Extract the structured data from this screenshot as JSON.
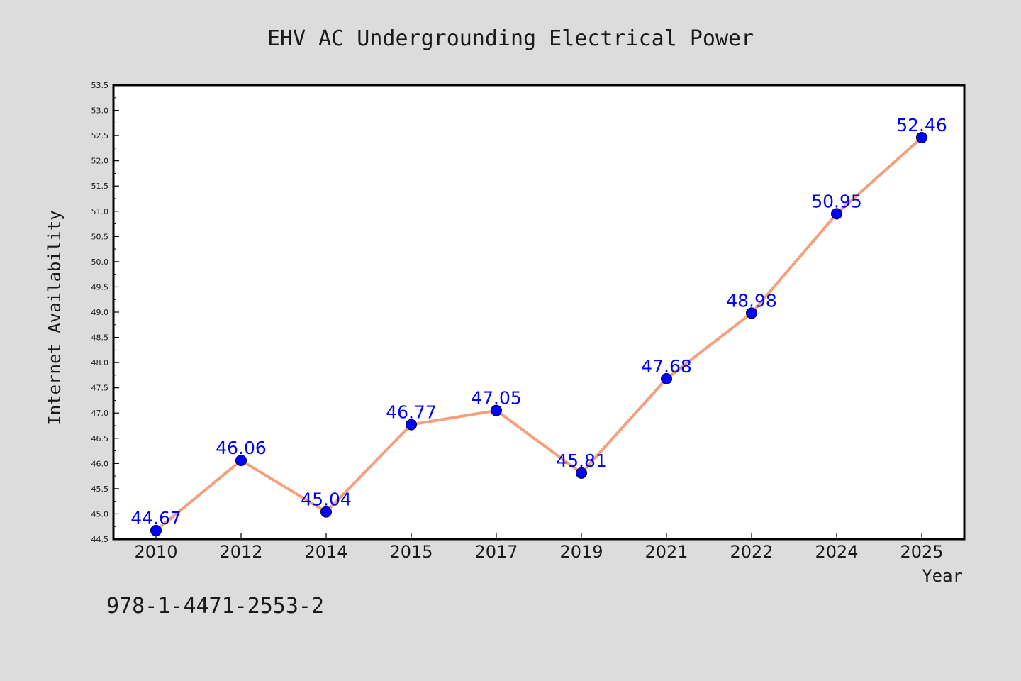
{
  "chart_data": {
    "type": "line",
    "title": "EHV AC Undergrounding Electrical Power",
    "xlabel": "Year",
    "ylabel": "Internet Availability",
    "categories": [
      "2010",
      "2012",
      "2014",
      "2015",
      "2017",
      "2019",
      "2021",
      "2022",
      "2024",
      "2025"
    ],
    "series": [
      {
        "values": [
          44.67,
          46.06,
          45.04,
          46.77,
          47.05,
          45.81,
          47.68,
          48.98,
          50.95,
          52.46
        ],
        "labels": [
          "44.67",
          "46.06",
          "45.04",
          "46.77",
          "47.05",
          "45.81",
          "47.68",
          "48.98",
          "50.95",
          "52.46"
        ]
      }
    ],
    "ylim": [
      44.5,
      53.5
    ],
    "yticks": [
      "44.5",
      "45.0",
      "45.5",
      "46.0",
      "46.5",
      "47.0",
      "47.5",
      "48.0",
      "48.5",
      "49.0",
      "49.5",
      "50.0",
      "50.5",
      "51.0",
      "51.5",
      "52.0",
      "52.5",
      "53.0",
      "53.5"
    ],
    "grid": false,
    "colors": {
      "background": "#dcdcdc",
      "plot_background": "#ffffff",
      "line": "#f4a07c",
      "marker": "#0000ff",
      "data_label": "#0000ff",
      "text": "#1a1a1a"
    }
  },
  "annotation": "978-1-4471-2553-2"
}
